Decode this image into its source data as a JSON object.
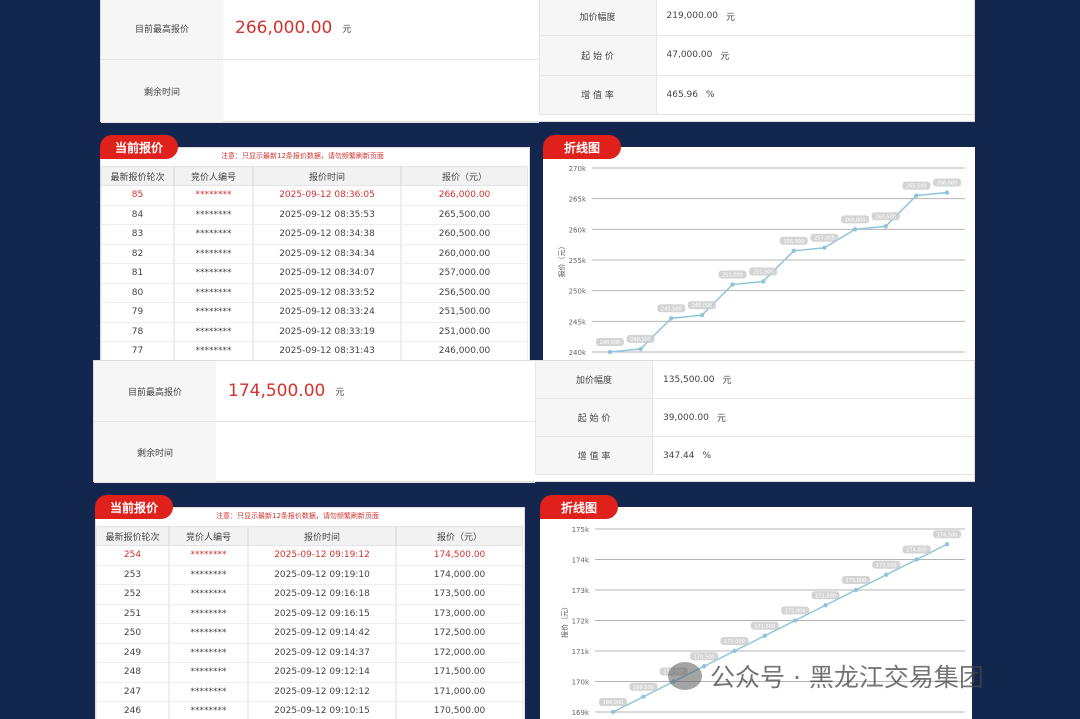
{
  "chart_data": [
    {
      "type": "line",
      "title": "折线图",
      "ylabel": "报价（元）",
      "categories": [
        null,
        null,
        null,
        null,
        null,
        null,
        null,
        null,
        null,
        null,
        null,
        null
      ],
      "values": [
        240000,
        240500,
        245500,
        246000,
        251000,
        251500,
        256500,
        257000,
        260000,
        260500,
        265500,
        266000
      ],
      "value_labels": [
        "240,000",
        "240,500",
        "245,500",
        "246,000",
        "251,000",
        "251,500",
        "256,500",
        "257,000",
        "260,000",
        "260,500",
        "265,500",
        "266,000"
      ],
      "color": "#8fc4dc",
      "ylim": [
        240000,
        270000
      ],
      "grid": true,
      "yticks": [
        {
          "value": 240000,
          "label": "240k"
        },
        {
          "value": 245000,
          "label": "245k"
        },
        {
          "value": 250000,
          "label": "250k"
        },
        {
          "value": 255000,
          "label": "255k"
        },
        {
          "value": 260000,
          "label": "260k"
        },
        {
          "value": 265000,
          "label": "265k"
        },
        {
          "value": 270000,
          "label": "270k"
        }
      ]
    },
    {
      "type": "line",
      "title": "折线图",
      "ylabel": "报价（元）",
      "categories": [
        null,
        null,
        null,
        null,
        null,
        null,
        null,
        null,
        null,
        null,
        null,
        null
      ],
      "values": [
        169000,
        169500,
        170000,
        170500,
        171000,
        171500,
        172000,
        172500,
        173000,
        173500,
        174000,
        174500
      ],
      "value_labels": [
        "169,000",
        "169,500",
        "170,000",
        "170,500",
        "171,000",
        "171,500",
        "172,000",
        "172,500",
        "173,000",
        "173,500",
        "174,000",
        "174,500"
      ],
      "color": "#8fc4dc",
      "ylim": [
        169000,
        175000
      ],
      "grid": true,
      "yticks": [
        {
          "value": 169000,
          "label": "169k"
        },
        {
          "value": 170000,
          "label": "170k"
        },
        {
          "value": 171000,
          "label": "171k"
        },
        {
          "value": 172000,
          "label": "172k"
        },
        {
          "value": 173000,
          "label": "173k"
        },
        {
          "value": 174000,
          "label": "174k"
        },
        {
          "value": 175000,
          "label": "175k"
        }
      ]
    }
  ],
  "panels": [
    {
      "info": {
        "left": [
          {
            "label": "目前最高报价",
            "value": "266,000.00",
            "unit": "元"
          },
          {
            "label": "剩余时间"
          }
        ],
        "right": [
          {
            "label": "加价幅度",
            "value": "219,000.00",
            "unit": "元"
          },
          {
            "label": "起 始 价",
            "value": "47,000.00",
            "unit": "元"
          },
          {
            "label": "增 值 率",
            "value": "465.96",
            "unit": "%"
          }
        ]
      },
      "bids": {
        "tab": "当前报价",
        "note": "注意：只显示最新12条报价数据，请勿频繁刷新页面",
        "headers": [
          "最新报价轮次",
          "竞价人编号",
          "报价时间",
          "报价（元）"
        ],
        "rows": [
          [
            "85",
            "********",
            "2025-09-12 08:36:05",
            "266,000.00"
          ],
          [
            "84",
            "********",
            "2025-09-12 08:35:53",
            "265,500.00"
          ],
          [
            "83",
            "********",
            "2025-09-12 08:34:38",
            "260,500.00"
          ],
          [
            "82",
            "********",
            "2025-09-12 08:34:34",
            "260,000.00"
          ],
          [
            "81",
            "********",
            "2025-09-12 08:34:07",
            "257,000.00"
          ],
          [
            "80",
            "********",
            "2025-09-12 08:33:52",
            "256,500.00"
          ],
          [
            "79",
            "********",
            "2025-09-12 08:33:24",
            "251,500.00"
          ],
          [
            "78",
            "********",
            "2025-09-12 08:33:19",
            "251,000.00"
          ],
          [
            "77",
            "********",
            "2025-09-12 08:31:43",
            "246,000.00"
          ]
        ]
      }
    },
    {
      "info": {
        "left": [
          {
            "label": "目前最高报价",
            "value": "174,500.00",
            "unit": "元"
          },
          {
            "label": "剩余时间"
          }
        ],
        "right": [
          {
            "label": "加价幅度",
            "value": "135,500.00",
            "unit": "元"
          },
          {
            "label": "起 始 价",
            "value": "39,000.00",
            "unit": "元"
          },
          {
            "label": "增 值 率",
            "value": "347.44",
            "unit": "%"
          }
        ]
      },
      "bids": {
        "tab": "当前报价",
        "note": "注意：只显示最新12条报价数据，请勿频繁刷新页面",
        "headers": [
          "最新报价轮次",
          "竞价人编号",
          "报价时间",
          "报价（元）"
        ],
        "rows": [
          [
            "254",
            "********",
            "2025-09-12 09:19:12",
            "174,500.00"
          ],
          [
            "253",
            "********",
            "2025-09-12 09:19:10",
            "174,000.00"
          ],
          [
            "252",
            "********",
            "2025-09-12 09:16:18",
            "173,500.00"
          ],
          [
            "251",
            "********",
            "2025-09-12 09:16:15",
            "173,000.00"
          ],
          [
            "250",
            "********",
            "2025-09-12 09:14:42",
            "172,500.00"
          ],
          [
            "249",
            "********",
            "2025-09-12 09:14:37",
            "172,000.00"
          ],
          [
            "248",
            "********",
            "2025-09-12 09:12:14",
            "171,500.00"
          ],
          [
            "247",
            "********",
            "2025-09-12 09:12:12",
            "171,000.00"
          ],
          [
            "246",
            "********",
            "2025-09-12 09:10:15",
            "170,500.00"
          ]
        ]
      }
    }
  ],
  "watermark": "公众号 · 黑龙江交易集团"
}
